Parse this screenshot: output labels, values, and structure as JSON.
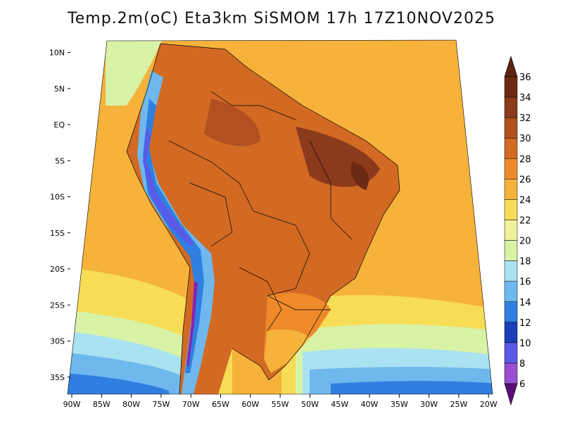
{
  "title": "Temp.2m(oC) Eta3km SiSMOM 17h 17Z10NOV2025",
  "map": {
    "variable": "Temp.2m(oC)",
    "model": "Eta3km SiSMOM",
    "lead": "17h",
    "valid_time": "17Z10NOV2025",
    "lon_range": [
      -91,
      -20
    ],
    "lat_range": [
      -38,
      11
    ],
    "lat_ticks": [
      {
        "lat": 10,
        "label": "10N"
      },
      {
        "lat": 5,
        "label": "5N"
      },
      {
        "lat": 0,
        "label": "EQ"
      },
      {
        "lat": -5,
        "label": "5S"
      },
      {
        "lat": -10,
        "label": "10S"
      },
      {
        "lat": -15,
        "label": "15S"
      },
      {
        "lat": -20,
        "label": "20S"
      },
      {
        "lat": -25,
        "label": "25S"
      },
      {
        "lat": -30,
        "label": "30S"
      },
      {
        "lat": -35,
        "label": "35S"
      }
    ],
    "lon_ticks": [
      {
        "lon": -90,
        "label": "90W"
      },
      {
        "lon": -85,
        "label": "85W"
      },
      {
        "lon": -80,
        "label": "80W"
      },
      {
        "lon": -75,
        "label": "75W"
      },
      {
        "lon": -70,
        "label": "70W"
      },
      {
        "lon": -65,
        "label": "65W"
      },
      {
        "lon": -60,
        "label": "60W"
      },
      {
        "lon": -55,
        "label": "55W"
      },
      {
        "lon": -50,
        "label": "50W"
      },
      {
        "lon": -45,
        "label": "45W"
      },
      {
        "lon": -40,
        "label": "40W"
      },
      {
        "lon": -35,
        "label": "35W"
      },
      {
        "lon": -30,
        "label": "30W"
      },
      {
        "lon": -25,
        "label": "25W"
      },
      {
        "lon": -20,
        "label": "20W"
      }
    ]
  },
  "colorbar": {
    "labels": [
      "36",
      "34",
      "32",
      "30",
      "28",
      "26",
      "24",
      "22",
      "20",
      "18",
      "16",
      "14",
      "12",
      "10",
      "8",
      "6"
    ],
    "colors": [
      "#6b2a12",
      "#8c3a1c",
      "#b2501f",
      "#d26a24",
      "#ef8a2a",
      "#f6b23a",
      "#f7dc55",
      "#f2f09a",
      "#d8f2a6",
      "#a9e2f0",
      "#6fb8ee",
      "#2f7fe0",
      "#1a3fb8",
      "#1b1b98",
      "#5a5ae8",
      "#9a4fd0",
      "#8a22b0",
      "#6a0f8c"
    ],
    "min_arrow_color": "#5a0f78",
    "max_arrow_color": "#5a2410"
  }
}
